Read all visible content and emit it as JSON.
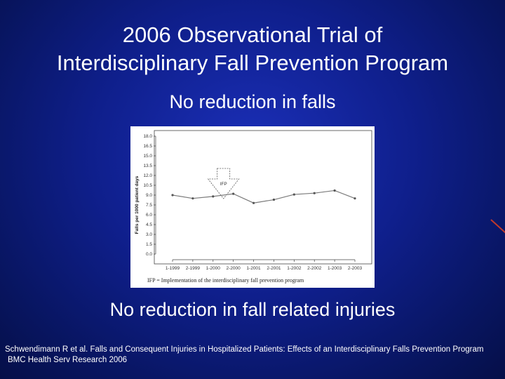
{
  "slide": {
    "title_line1": "2006 Observational Trial of",
    "title_line2": "Interdisciplinary Fall Prevention Program",
    "subtitle_top": "No reduction in falls",
    "subtitle_bottom": "No reduction in fall related injuries",
    "citation_line1": "Schwendimann R et al. Falls and Consequent Injuries in Hospitalized Patients: Effects of an Interdisciplinary Falls Prevention Program",
    "citation_line2": "BMC Health Serv Research 2006"
  },
  "colors": {
    "background": "#0f1f8c",
    "text": "#ffffff",
    "chart_line": "#7a7a7a",
    "chart_background": "#ffffff"
  },
  "chart_data": {
    "type": "line",
    "title": "",
    "xlabel": "",
    "ylabel": "Falls per 1000 patient days",
    "categories": [
      "1-1999",
      "2-1999",
      "1-2000",
      "2-2000",
      "1-2001",
      "2-2001",
      "1-2002",
      "2-2002",
      "1-2003",
      "2-2003"
    ],
    "series": [
      {
        "values": [
          9.0,
          8.5,
          8.8,
          9.2,
          7.8,
          8.3,
          9.1,
          9.3,
          9.7,
          8.5
        ]
      }
    ],
    "ylim": [
      0.0,
      18.0
    ],
    "yticks": [
      "0.0",
      "1.5",
      "3.0",
      "4.5",
      "6.0",
      "7.5",
      "9.0",
      "10.5",
      "12.0",
      "13.5",
      "15.0",
      "16.5",
      "18.0"
    ],
    "annotation": {
      "label": "IFP",
      "category": "2-2000"
    },
    "footnote": "IFP = Implementation of the interdisciplinary fall prevention program",
    "grid": false,
    "legend": "none"
  }
}
